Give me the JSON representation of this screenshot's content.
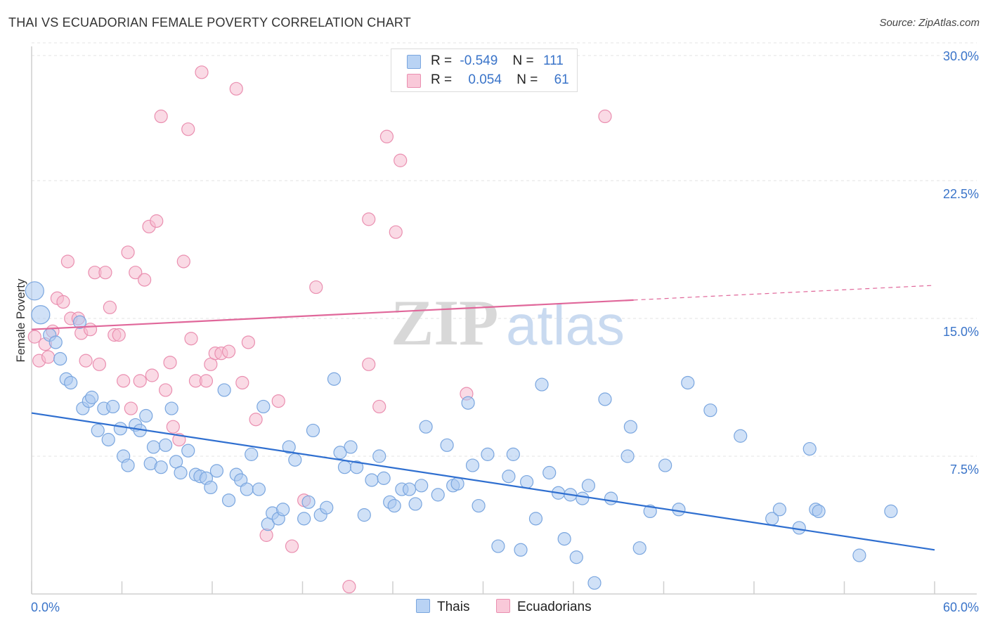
{
  "header": {
    "title": "THAI VS ECUADORIAN FEMALE POVERTY CORRELATION CHART",
    "source": "Source: ZipAtlas.com"
  },
  "watermark": {
    "zip": "ZIP",
    "atlas": "atlas"
  },
  "colors": {
    "thai_fill": "#a9c8f0",
    "thai_stroke": "#7aa6df",
    "thai_line": "#2f6fd0",
    "ecu_fill": "#f6bcd0",
    "ecu_stroke": "#ea8fb0",
    "ecu_line": "#e0679a",
    "tick_label": "#3a74c9",
    "grid": "#e3e3e3"
  },
  "stats_legend": {
    "rows": [
      {
        "r_label": "R =",
        "r_value": "-0.549",
        "n_label": "N =",
        "n_value": "111"
      },
      {
        "r_label": "R =",
        "r_value": "0.054",
        "n_label": "N =",
        "n_value": "61"
      }
    ]
  },
  "bottom_legend": {
    "thai": "Thais",
    "ecu": "Ecuadorians"
  },
  "chart_data": {
    "type": "scatter",
    "title": "THAI VS ECUADORIAN FEMALE POVERTY CORRELATION CHART",
    "xlabel": "",
    "ylabel": "Female Poverty",
    "xlim": [
      0,
      60
    ],
    "ylim": [
      0,
      30
    ],
    "x_tick_labels": [
      "0.0%",
      "60.0%"
    ],
    "y_ticks": [
      7.5,
      15.0,
      22.5,
      30.0
    ],
    "y_tick_labels": [
      "7.5%",
      "15.0%",
      "22.5%",
      "30.0%"
    ],
    "grid": true,
    "series": [
      {
        "name": "Thais",
        "trend": {
          "x0": 0,
          "y0": 9.85,
          "x1": 60,
          "y1": 2.4
        },
        "points": [
          [
            0.2,
            16.5
          ],
          [
            0.6,
            15.2
          ],
          [
            1.2,
            14.1
          ],
          [
            1.6,
            13.7
          ],
          [
            1.9,
            12.8
          ],
          [
            2.3,
            11.7
          ],
          [
            2.6,
            11.5
          ],
          [
            3.2,
            14.8
          ],
          [
            3.4,
            10.1
          ],
          [
            3.8,
            10.5
          ],
          [
            4.0,
            10.7
          ],
          [
            4.4,
            8.9
          ],
          [
            4.8,
            10.1
          ],
          [
            5.1,
            8.4
          ],
          [
            5.4,
            10.2
          ],
          [
            5.9,
            9.0
          ],
          [
            6.1,
            7.5
          ],
          [
            6.4,
            7.0
          ],
          [
            6.9,
            9.2
          ],
          [
            7.2,
            8.9
          ],
          [
            7.6,
            9.7
          ],
          [
            7.9,
            7.1
          ],
          [
            8.1,
            8.0
          ],
          [
            8.6,
            6.9
          ],
          [
            8.9,
            8.1
          ],
          [
            9.3,
            10.1
          ],
          [
            9.6,
            7.2
          ],
          [
            9.9,
            6.6
          ],
          [
            10.4,
            7.8
          ],
          [
            10.9,
            6.5
          ],
          [
            11.2,
            6.4
          ],
          [
            11.6,
            6.3
          ],
          [
            11.9,
            5.8
          ],
          [
            12.3,
            6.7
          ],
          [
            12.8,
            11.1
          ],
          [
            13.1,
            5.1
          ],
          [
            13.6,
            6.5
          ],
          [
            13.9,
            6.2
          ],
          [
            14.3,
            5.7
          ],
          [
            14.6,
            7.6
          ],
          [
            15.1,
            5.7
          ],
          [
            15.4,
            10.2
          ],
          [
            15.7,
            3.8
          ],
          [
            16.0,
            4.4
          ],
          [
            16.4,
            4.1
          ],
          [
            16.7,
            4.6
          ],
          [
            17.1,
            8.0
          ],
          [
            17.5,
            7.3
          ],
          [
            18.1,
            4.1
          ],
          [
            18.4,
            5.0
          ],
          [
            18.7,
            8.9
          ],
          [
            19.2,
            4.3
          ],
          [
            19.6,
            4.7
          ],
          [
            20.1,
            11.7
          ],
          [
            20.5,
            7.7
          ],
          [
            20.8,
            6.9
          ],
          [
            21.2,
            8.0
          ],
          [
            21.6,
            6.9
          ],
          [
            22.1,
            4.3
          ],
          [
            22.6,
            6.2
          ],
          [
            23.1,
            7.5
          ],
          [
            23.4,
            6.3
          ],
          [
            23.8,
            5.0
          ],
          [
            24.1,
            4.8
          ],
          [
            24.6,
            5.7
          ],
          [
            25.1,
            5.7
          ],
          [
            25.5,
            4.9
          ],
          [
            25.9,
            5.9
          ],
          [
            26.2,
            9.1
          ],
          [
            27.0,
            5.4
          ],
          [
            27.6,
            8.1
          ],
          [
            28.0,
            5.9
          ],
          [
            28.3,
            6.0
          ],
          [
            29.0,
            10.4
          ],
          [
            29.3,
            7.0
          ],
          [
            29.7,
            4.8
          ],
          [
            30.3,
            7.6
          ],
          [
            31.0,
            2.6
          ],
          [
            31.7,
            6.4
          ],
          [
            32.0,
            7.6
          ],
          [
            32.5,
            2.4
          ],
          [
            32.9,
            6.1
          ],
          [
            33.5,
            4.1
          ],
          [
            33.9,
            11.4
          ],
          [
            34.4,
            6.6
          ],
          [
            35.0,
            5.5
          ],
          [
            35.4,
            3.0
          ],
          [
            35.8,
            5.4
          ],
          [
            36.2,
            2.0
          ],
          [
            36.6,
            5.2
          ],
          [
            37.0,
            5.9
          ],
          [
            37.4,
            0.6
          ],
          [
            38.1,
            10.6
          ],
          [
            38.5,
            5.2
          ],
          [
            39.6,
            7.5
          ],
          [
            39.8,
            9.1
          ],
          [
            40.4,
            2.5
          ],
          [
            41.1,
            4.5
          ],
          [
            42.1,
            7.0
          ],
          [
            43.0,
            4.6
          ],
          [
            43.6,
            11.5
          ],
          [
            45.1,
            10.0
          ],
          [
            47.1,
            8.6
          ],
          [
            49.2,
            4.1
          ],
          [
            49.7,
            4.6
          ],
          [
            51.0,
            3.6
          ],
          [
            51.7,
            7.9
          ],
          [
            52.1,
            4.6
          ],
          [
            52.3,
            4.5
          ],
          [
            55.0,
            2.1
          ],
          [
            57.1,
            4.5
          ]
        ]
      },
      {
        "name": "Ecuadorians",
        "trend": {
          "x0": 0,
          "y0": 14.4,
          "x1": 40,
          "y1": 16.0,
          "dash_to_x": 60,
          "dash_to_y": 16.8
        },
        "points": [
          [
            0.2,
            14.0
          ],
          [
            0.5,
            12.7
          ],
          [
            0.9,
            13.6
          ],
          [
            1.1,
            12.9
          ],
          [
            1.4,
            14.3
          ],
          [
            1.7,
            16.1
          ],
          [
            2.1,
            15.9
          ],
          [
            2.4,
            18.1
          ],
          [
            2.6,
            15.0
          ],
          [
            3.1,
            15.0
          ],
          [
            3.3,
            14.2
          ],
          [
            3.6,
            12.7
          ],
          [
            3.9,
            14.4
          ],
          [
            4.2,
            17.5
          ],
          [
            4.5,
            12.5
          ],
          [
            4.9,
            17.5
          ],
          [
            5.2,
            15.6
          ],
          [
            5.5,
            14.1
          ],
          [
            5.8,
            14.1
          ],
          [
            6.1,
            11.6
          ],
          [
            6.4,
            18.6
          ],
          [
            6.6,
            10.1
          ],
          [
            6.9,
            17.5
          ],
          [
            7.2,
            11.6
          ],
          [
            7.5,
            17.1
          ],
          [
            7.8,
            20.0
          ],
          [
            8.0,
            11.9
          ],
          [
            8.3,
            20.3
          ],
          [
            8.6,
            26.0
          ],
          [
            8.9,
            11.1
          ],
          [
            9.2,
            12.6
          ],
          [
            9.4,
            9.1
          ],
          [
            9.8,
            8.4
          ],
          [
            10.1,
            18.1
          ],
          [
            10.4,
            25.3
          ],
          [
            10.6,
            13.9
          ],
          [
            10.9,
            11.6
          ],
          [
            11.3,
            28.4
          ],
          [
            11.6,
            11.6
          ],
          [
            11.9,
            12.5
          ],
          [
            12.2,
            13.1
          ],
          [
            12.6,
            13.1
          ],
          [
            13.1,
            13.2
          ],
          [
            13.6,
            27.5
          ],
          [
            14.0,
            11.5
          ],
          [
            14.4,
            13.7
          ],
          [
            14.9,
            9.5
          ],
          [
            15.6,
            3.2
          ],
          [
            16.4,
            10.5
          ],
          [
            17.3,
            2.6
          ],
          [
            18.1,
            5.1
          ],
          [
            18.9,
            16.7
          ],
          [
            21.1,
            0.4
          ],
          [
            22.4,
            12.5
          ],
          [
            23.1,
            10.2
          ],
          [
            23.6,
            24.9
          ],
          [
            22.4,
            20.4
          ],
          [
            24.2,
            19.7
          ],
          [
            24.5,
            23.6
          ],
          [
            28.9,
            10.9
          ],
          [
            38.1,
            26.0
          ]
        ]
      }
    ]
  }
}
